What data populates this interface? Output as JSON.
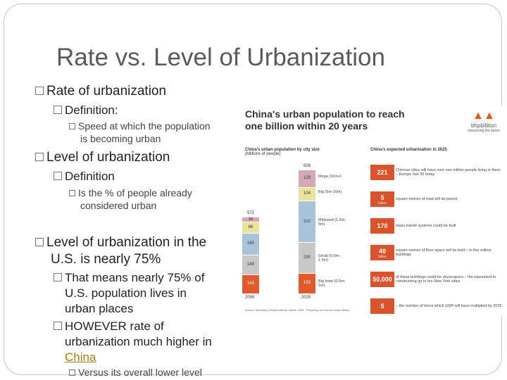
{
  "slide": {
    "title": "Rate vs. Level of Urbanization",
    "bullets": [
      {
        "text": "Rate of urbanization"
      },
      {
        "text": "Definition:"
      },
      {
        "text": "Speed at which the population"
      },
      {
        "text": "is becoming urban"
      },
      {
        "text": "Level of urbanization"
      },
      {
        "text": "Definition"
      },
      {
        "text": "Is the % of people already"
      },
      {
        "text": "considered urban"
      },
      {
        "text": "Level of urbanization in the"
      },
      {
        "text": "U.S. is nearly 75%"
      },
      {
        "text": "That means nearly 75% of"
      },
      {
        "text": "U.S. population lives in"
      },
      {
        "text": "urban places"
      },
      {
        "text": "HOWEVER rate of"
      },
      {
        "text": "urbanization much higher in"
      },
      {
        "text": "China"
      },
      {
        "text": "Versus its overall lower level"
      }
    ]
  },
  "figure": {
    "title_line1": "China's urban population to reach",
    "title_line2": "one billion within 20 years",
    "logo_text": "bhpbilliton",
    "logo_sub": "resourcing the future",
    "left_subtitle": "China's urban population by city size",
    "left_subtitle2": "(Millions of people)",
    "right_subtitle": "China's expected urbanisation in 2025",
    "source": "Source: McKinsey Global Institute, March 2008, \"Preparing for China's Urban Billion\"",
    "chart_data": {
      "type": "bar",
      "stacked": true,
      "categories": [
        "2005",
        "2025"
      ],
      "totals": [
        572,
        926
      ],
      "series": [
        {
          "name": "Big town (0.5m-1m)",
          "values": [
            143,
            153
          ],
          "color": "#e05a2a"
        },
        {
          "name": "Small (0.5m-1.5m)",
          "values": [
            149,
            230
          ],
          "color": "#c8c8c8"
        },
        {
          "name": "Midsized (1.5m-5m)",
          "values": [
            160,
            310
          ],
          "color": "#a9c4d8"
        },
        {
          "name": "Big (5m-10m)",
          "values": [
            86,
            104
          ],
          "color": "#e8e39a"
        },
        {
          "name": "Mega (10m+)",
          "values": [
            34,
            129
          ],
          "color": "#d4a8b4"
        }
      ],
      "segment_labels": [
        {
          "name": "Mega",
          "range": "(10m+)"
        },
        {
          "name": "Big",
          "range": "(5m-10m)"
        },
        {
          "name": "Midsized",
          "range": "(1.5m-5m)"
        },
        {
          "name": "Small",
          "range": "(0.5m-1.5m)"
        },
        {
          "name": "Big town",
          "range": "(0.5m-1m)"
        }
      ]
    },
    "expectations": [
      {
        "value": "221",
        "unit": "",
        "text": "Chinese cities will have over one million people living in them – Europe has 35 today"
      },
      {
        "value": "5",
        "unit": "billion",
        "text": "square metres of road will be paved"
      },
      {
        "value": "170",
        "unit": "",
        "text": "mass-transit systems could be built"
      },
      {
        "value": "40",
        "unit": "billion",
        "text": "square metres of floor space will be built – in five million buildings"
      },
      {
        "value": "50,000",
        "unit": "",
        "text": "of these buildings could be skyscrapers – the equivalent to constructing up to ten New York cities"
      },
      {
        "value": "5",
        "unit": "",
        "text": "– the number of times which GDP will have multiplied by 2025"
      }
    ]
  }
}
